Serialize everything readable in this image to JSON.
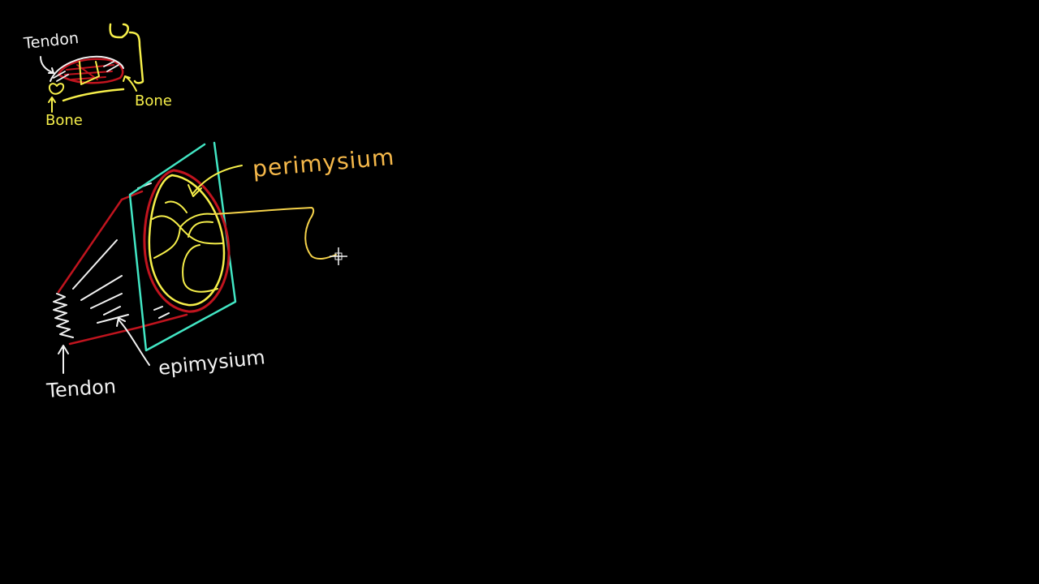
{
  "colors": {
    "background": "#000000",
    "white": "#f2f2f2",
    "yellow": "#f6ef4a",
    "orange": "#f5b84a",
    "red": "#c0141e",
    "cyan": "#42e6c4"
  },
  "small_diagram": {
    "tendon_label": "Tendon",
    "bone_left_label": "Bone",
    "bone_right_label": "Bone"
  },
  "main_diagram": {
    "perimysium_label": "perimysium",
    "epimysium_label": "epimysium",
    "tendon_label": "Tendon"
  },
  "cursor": {
    "icon": "crosshair-cursor-icon"
  }
}
